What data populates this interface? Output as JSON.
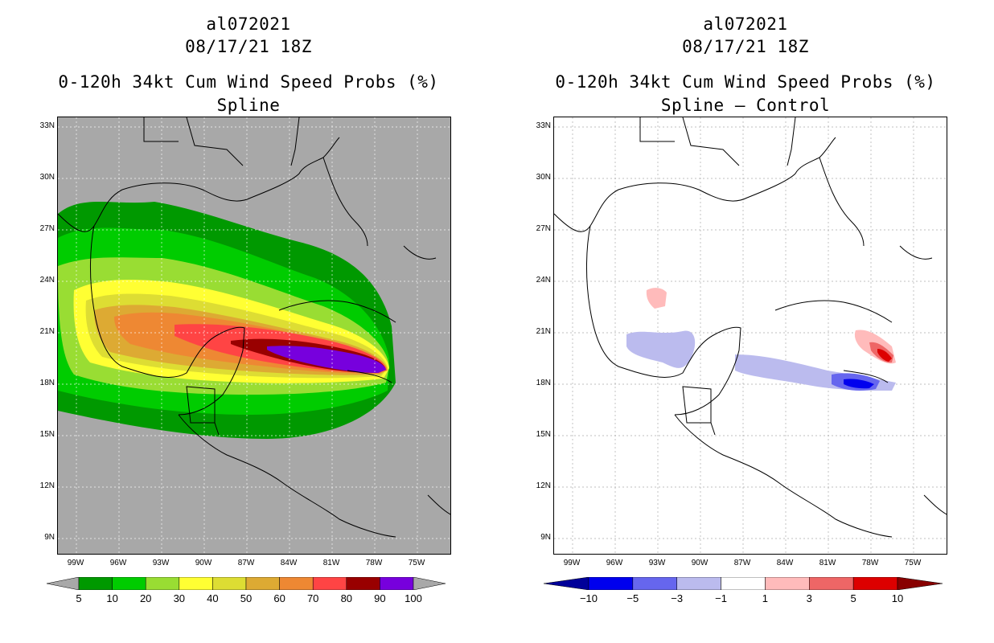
{
  "left_panel": {
    "storm_id": "al072021",
    "datetime": "08/17/21 18Z",
    "product": "0-120h 34kt Cum Wind Speed Probs (%)",
    "subtitle": "Spline",
    "background_color": "#a8a8a8",
    "colorbar": {
      "labels": [
        "5",
        "10",
        "20",
        "30",
        "40",
        "50",
        "60",
        "70",
        "80",
        "90",
        "100"
      ],
      "colors": [
        "#009900",
        "#00cc00",
        "#99dd33",
        "#ffff33",
        "#dddd33",
        "#ddaa33",
        "#ee8833",
        "#ff4444",
        "#990000",
        "#7700dd"
      ],
      "end_color": "#a8a8a8"
    }
  },
  "right_panel": {
    "storm_id": "al072021",
    "datetime": "08/17/21 18Z",
    "product": "0-120h 34kt Cum Wind Speed Probs (%)",
    "subtitle": "Spline – Control",
    "background_color": "#ffffff",
    "colorbar": {
      "labels": [
        "−10",
        "−5",
        "−3",
        "−1",
        "1",
        "3",
        "5",
        "10"
      ],
      "colors": [
        "#0000ee",
        "#6666ee",
        "#bbbbee",
        "#ffffff",
        "#ffbbbb",
        "#ee6666",
        "#dd0000"
      ],
      "end_left_color": "#000099",
      "end_right_color": "#880000"
    }
  },
  "lat_labels": [
    "33N",
    "30N",
    "27N",
    "24N",
    "21N",
    "18N",
    "15N",
    "12N",
    "9N"
  ],
  "lon_labels": [
    "99W",
    "96W",
    "93W",
    "90W",
    "87W",
    "84W",
    "81W",
    "78W",
    "75W"
  ]
}
